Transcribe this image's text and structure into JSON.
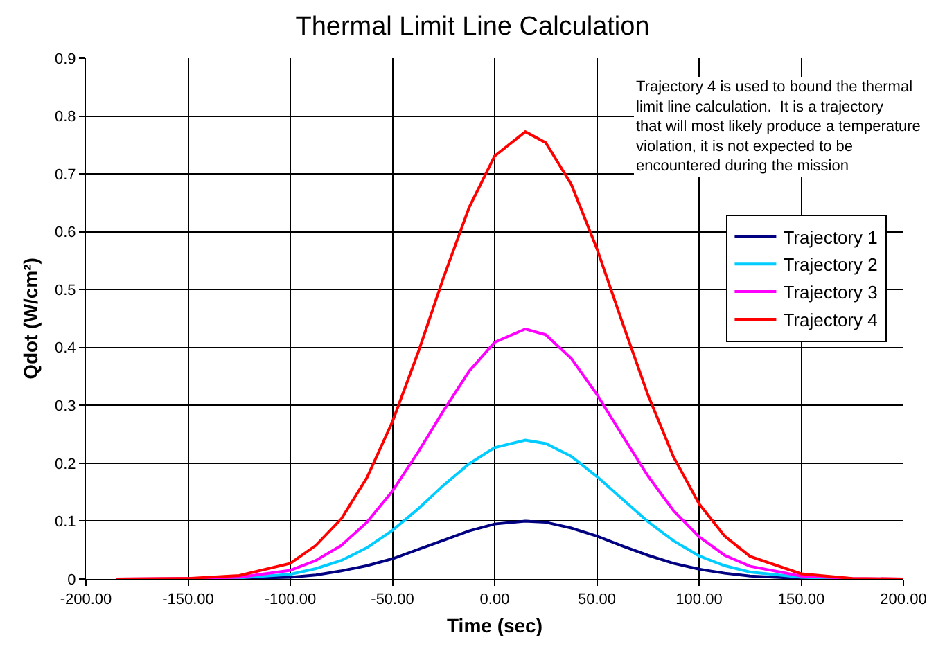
{
  "chart_data": {
    "type": "line",
    "title": "Thermal Limit Line Calculation",
    "xlabel": "Time (sec)",
    "ylabel": "Qdot (W/cm²)",
    "annotations": [
      "Trajectory 4 is used to bound the thermal limit line calculation.  It is a trajectory that will most likely produce a temperature violation, it is not expected to be encountered during the mission"
    ],
    "x": [
      -185,
      -150,
      -125,
      -100,
      -87.5,
      -75,
      -62.5,
      -50,
      -37.5,
      -25,
      -12.5,
      0,
      15,
      25,
      37.5,
      50,
      62.5,
      75,
      87.5,
      100,
      112.5,
      125,
      150,
      175,
      200
    ],
    "series": [
      {
        "name": "Trajectory 1",
        "color": "#000080",
        "values": [
          0,
          0,
          0.001,
          0.003,
          0.007,
          0.014,
          0.023,
          0.035,
          0.051,
          0.067,
          0.083,
          0.095,
          0.1,
          0.098,
          0.088,
          0.074,
          0.057,
          0.041,
          0.027,
          0.017,
          0.01,
          0.005,
          0.001,
          0,
          0
        ]
      },
      {
        "name": "Trajectory 2",
        "color": "#00ccff",
        "values": [
          0,
          0,
          0.002,
          0.008,
          0.018,
          0.032,
          0.054,
          0.084,
          0.121,
          0.162,
          0.199,
          0.227,
          0.24,
          0.234,
          0.212,
          0.177,
          0.138,
          0.099,
          0.066,
          0.04,
          0.023,
          0.012,
          0.003,
          0,
          0
        ]
      },
      {
        "name": "Trajectory 3",
        "color": "#ff00ff",
        "values": [
          0,
          0.001,
          0.003,
          0.015,
          0.032,
          0.058,
          0.098,
          0.152,
          0.219,
          0.291,
          0.359,
          0.409,
          0.432,
          0.422,
          0.381,
          0.319,
          0.248,
          0.178,
          0.118,
          0.073,
          0.041,
          0.022,
          0.005,
          0.001,
          0
        ]
      },
      {
        "name": "Trajectory 4",
        "color": "#ff0000",
        "values": [
          0,
          0.001,
          0.006,
          0.027,
          0.058,
          0.104,
          0.175,
          0.272,
          0.391,
          0.521,
          0.642,
          0.731,
          0.773,
          0.754,
          0.682,
          0.571,
          0.443,
          0.318,
          0.211,
          0.13,
          0.074,
          0.039,
          0.009,
          0.001,
          0
        ]
      }
    ],
    "xlim": [
      -200,
      200
    ],
    "xticks": [
      {
        "value": -200,
        "label": "-200.00"
      },
      {
        "value": -150,
        "label": "-150.00"
      },
      {
        "value": -100,
        "label": "-100.00"
      },
      {
        "value": -50,
        "label": "-50.00"
      },
      {
        "value": 0,
        "label": "0.00"
      },
      {
        "value": 50,
        "label": "50.00"
      },
      {
        "value": 100,
        "label": "100.00"
      },
      {
        "value": 150,
        "label": "150.00"
      },
      {
        "value": 200,
        "label": "200.00"
      }
    ],
    "ylim": [
      0,
      0.9
    ],
    "yticks": [
      0,
      0.1,
      0.2,
      0.3,
      0.4,
      0.5,
      0.6,
      0.7,
      0.8,
      0.9
    ],
    "grid": true,
    "legend": "top right",
    "marker": "none",
    "line_style": "solid"
  }
}
